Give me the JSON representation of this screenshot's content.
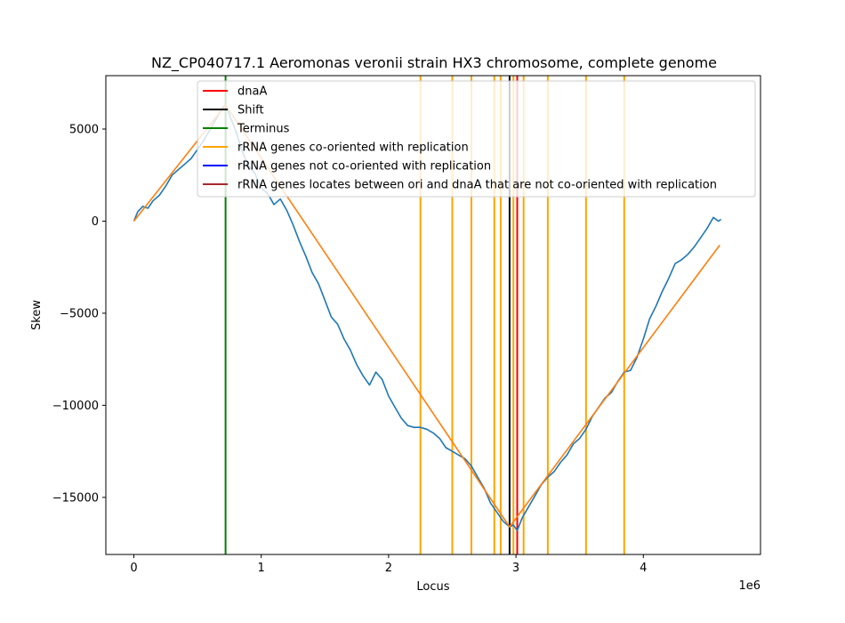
{
  "chart_data": {
    "type": "line",
    "title": "NZ_CP040717.1 Aeromonas veronii strain HX3 chromosome, complete genome",
    "xlabel": "Locus",
    "ylabel": "Skew",
    "x_offset_label": "1e6",
    "xlim": [
      -220000,
      4920000
    ],
    "ylim": [
      -18100,
      7900
    ],
    "x_ticks": [
      0,
      1000000,
      2000000,
      3000000,
      4000000
    ],
    "x_tick_labels": [
      "0",
      "1",
      "2",
      "3",
      "4"
    ],
    "y_ticks": [
      5000,
      0,
      -5000,
      -10000,
      -15000
    ],
    "y_tick_labels": [
      "5000",
      "0",
      "−5000",
      "−10000",
      "−15000"
    ],
    "legend_position": "top-right",
    "legend": [
      {
        "label": "dnaA",
        "color": "#ff0000"
      },
      {
        "label": "Shift",
        "color": "#000000"
      },
      {
        "label": "Terminus",
        "color": "#008000"
      },
      {
        "label": "rRNA genes co-oriented with replication",
        "color": "#ffa500"
      },
      {
        "label": "rRNA genes not co-oriented with replication",
        "color": "#0000ff"
      },
      {
        "label": "rRNA genes locates between ori and dnaA that are not co-oriented with replication",
        "color": "#a52a2a"
      }
    ],
    "vlines": {
      "dnaA": [
        3010000
      ],
      "shift": [
        2950000
      ],
      "terminus": [
        720000
      ],
      "rrna_co_oriented": [
        2250000,
        2500000,
        2650000,
        2830000,
        2880000,
        2980000,
        3060000,
        3250000,
        3550000,
        3850000
      ],
      "rrna_not_co_oriented": [],
      "rrna_between_ori_dnaA": []
    },
    "series": [
      {
        "color": "#1f77b4",
        "x": [
          0,
          30000,
          70000,
          110000,
          150000,
          200000,
          250000,
          300000,
          350000,
          400000,
          450000,
          500000,
          550000,
          600000,
          650000,
          700000,
          720000,
          760000,
          800000,
          850000,
          900000,
          950000,
          1000000,
          1050000,
          1100000,
          1150000,
          1200000,
          1250000,
          1300000,
          1350000,
          1400000,
          1450000,
          1500000,
          1550000,
          1600000,
          1650000,
          1700000,
          1750000,
          1800000,
          1850000,
          1900000,
          1950000,
          2000000,
          2050000,
          2100000,
          2150000,
          2200000,
          2250000,
          2300000,
          2350000,
          2400000,
          2450000,
          2500000,
          2550000,
          2600000,
          2650000,
          2700000,
          2750000,
          2800000,
          2850000,
          2900000,
          2950000,
          2980000,
          3010000,
          3050000,
          3100000,
          3150000,
          3200000,
          3250000,
          3300000,
          3350000,
          3400000,
          3450000,
          3500000,
          3550000,
          3600000,
          3650000,
          3700000,
          3750000,
          3800000,
          3850000,
          3900000,
          3950000,
          4000000,
          4050000,
          4100000,
          4150000,
          4200000,
          4250000,
          4300000,
          4350000,
          4400000,
          4450000,
          4500000,
          4550000,
          4590000,
          4610000
        ],
        "values": [
          0,
          500,
          800,
          700,
          1100,
          1400,
          1900,
          2500,
          2800,
          3100,
          3400,
          3900,
          4400,
          5000,
          5600,
          6200,
          6300,
          5600,
          4900,
          3800,
          3000,
          2600,
          1800,
          1500,
          900,
          1200,
          600,
          -200,
          -1100,
          -1900,
          -2800,
          -3400,
          -4300,
          -5200,
          -5600,
          -6400,
          -7000,
          -7800,
          -8400,
          -8900,
          -8200,
          -8600,
          -9500,
          -10100,
          -10700,
          -11100,
          -11200,
          -11200,
          -11300,
          -11500,
          -11800,
          -12300,
          -12500,
          -12700,
          -12900,
          -13300,
          -13900,
          -14500,
          -15300,
          -15800,
          -16300,
          -16600,
          -16500,
          -16800,
          -16100,
          -15500,
          -14900,
          -14300,
          -13900,
          -13600,
          -13100,
          -12700,
          -12100,
          -11800,
          -11300,
          -10600,
          -10100,
          -9600,
          -9300,
          -8700,
          -8200,
          -8100,
          -7400,
          -6400,
          -5300,
          -4600,
          -3800,
          -3100,
          -2300,
          -2100,
          -1800,
          -1400,
          -900,
          -400,
          200,
          0,
          100
        ]
      },
      {
        "color": "#ff7f0e",
        "x": [
          0,
          720000,
          2950000,
          4600000
        ],
        "values": [
          0,
          6300,
          -16600,
          -1300
        ]
      }
    ]
  }
}
